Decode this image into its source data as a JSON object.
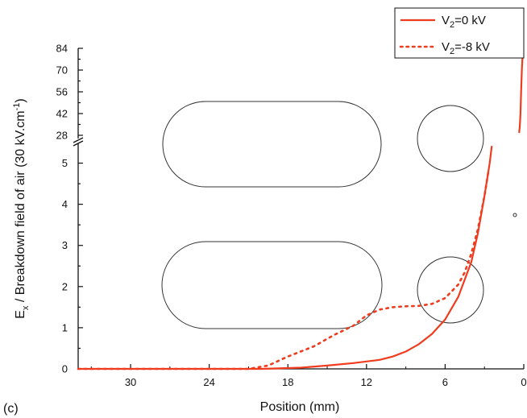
{
  "panel_label": "(c)",
  "chart_data": {
    "type": "line",
    "xlabel": "Position (mm)",
    "ylabel": "E_x / Breakdown field of air (30 kV.cm^-1)",
    "xlim": [
      34,
      0
    ],
    "x_reversed": true,
    "x_ticks": [
      30,
      24,
      18,
      12,
      6,
      0
    ],
    "y_lower": {
      "range": [
        0,
        5.5
      ],
      "ticks": [
        0,
        1,
        2,
        3,
        4,
        5
      ]
    },
    "y_upper": {
      "range": [
        28,
        84
      ],
      "ticks": [
        28,
        42,
        56,
        70,
        84
      ]
    },
    "y_axis_break": true,
    "grid": false,
    "legend": {
      "placement": "top-right",
      "entries": [
        {
          "main": "V",
          "sub": "2",
          "rest": "=0 kV"
        },
        {
          "main": "V",
          "sub": "2",
          "rest": "=-8 kV"
        }
      ]
    },
    "series": [
      {
        "name": "V2=0 kV",
        "style": "solid",
        "color": "#f03c1e",
        "segments": [
          [
            [
              34,
              0
            ],
            [
              20,
              0
            ],
            [
              17,
              0.03
            ],
            [
              15,
              0.08
            ],
            [
              13,
              0.14
            ],
            [
              11,
              0.22
            ],
            [
              10,
              0.3
            ],
            [
              9,
              0.42
            ],
            [
              8,
              0.6
            ],
            [
              7,
              0.85
            ],
            [
              6,
              1.2
            ],
            [
              5,
              1.75
            ],
            [
              4,
              2.6
            ],
            [
              3.5,
              3.3
            ],
            [
              3,
              4.2
            ],
            [
              2.6,
              5.0
            ],
            [
              2.45,
              5.4
            ]
          ],
          [
            [
              0.35,
              30
            ],
            [
              0.3,
              34
            ],
            [
              0.25,
              42
            ],
            [
              0.2,
              56
            ],
            [
              0.15,
              70
            ],
            [
              0.1,
              78
            ]
          ]
        ]
      },
      {
        "name": "V2=-8 kV",
        "style": "dotted",
        "color": "#f03c1e",
        "segments": [
          [
            [
              34,
              0
            ],
            [
              21,
              0
            ],
            [
              19.5,
              0.08
            ],
            [
              18,
              0.3
            ],
            [
              16,
              0.55
            ],
            [
              14.5,
              0.82
            ],
            [
              13,
              1.05
            ],
            [
              12,
              1.3
            ],
            [
              11,
              1.44
            ],
            [
              10,
              1.5
            ],
            [
              9,
              1.52
            ],
            [
              8,
              1.53
            ],
            [
              7,
              1.58
            ],
            [
              6,
              1.72
            ],
            [
              5,
              2.05
            ],
            [
              4.5,
              2.35
            ],
            [
              4,
              2.8
            ],
            [
              3.5,
              3.4
            ],
            [
              3,
              4.2
            ],
            [
              2.7,
              4.8
            ]
          ]
        ]
      }
    ],
    "annotations": [
      "circle marker near x=0.5, y=3.75"
    ],
    "colors": {
      "line": "#f03c1e",
      "axis": "#111111",
      "shapes": "#333333"
    }
  }
}
